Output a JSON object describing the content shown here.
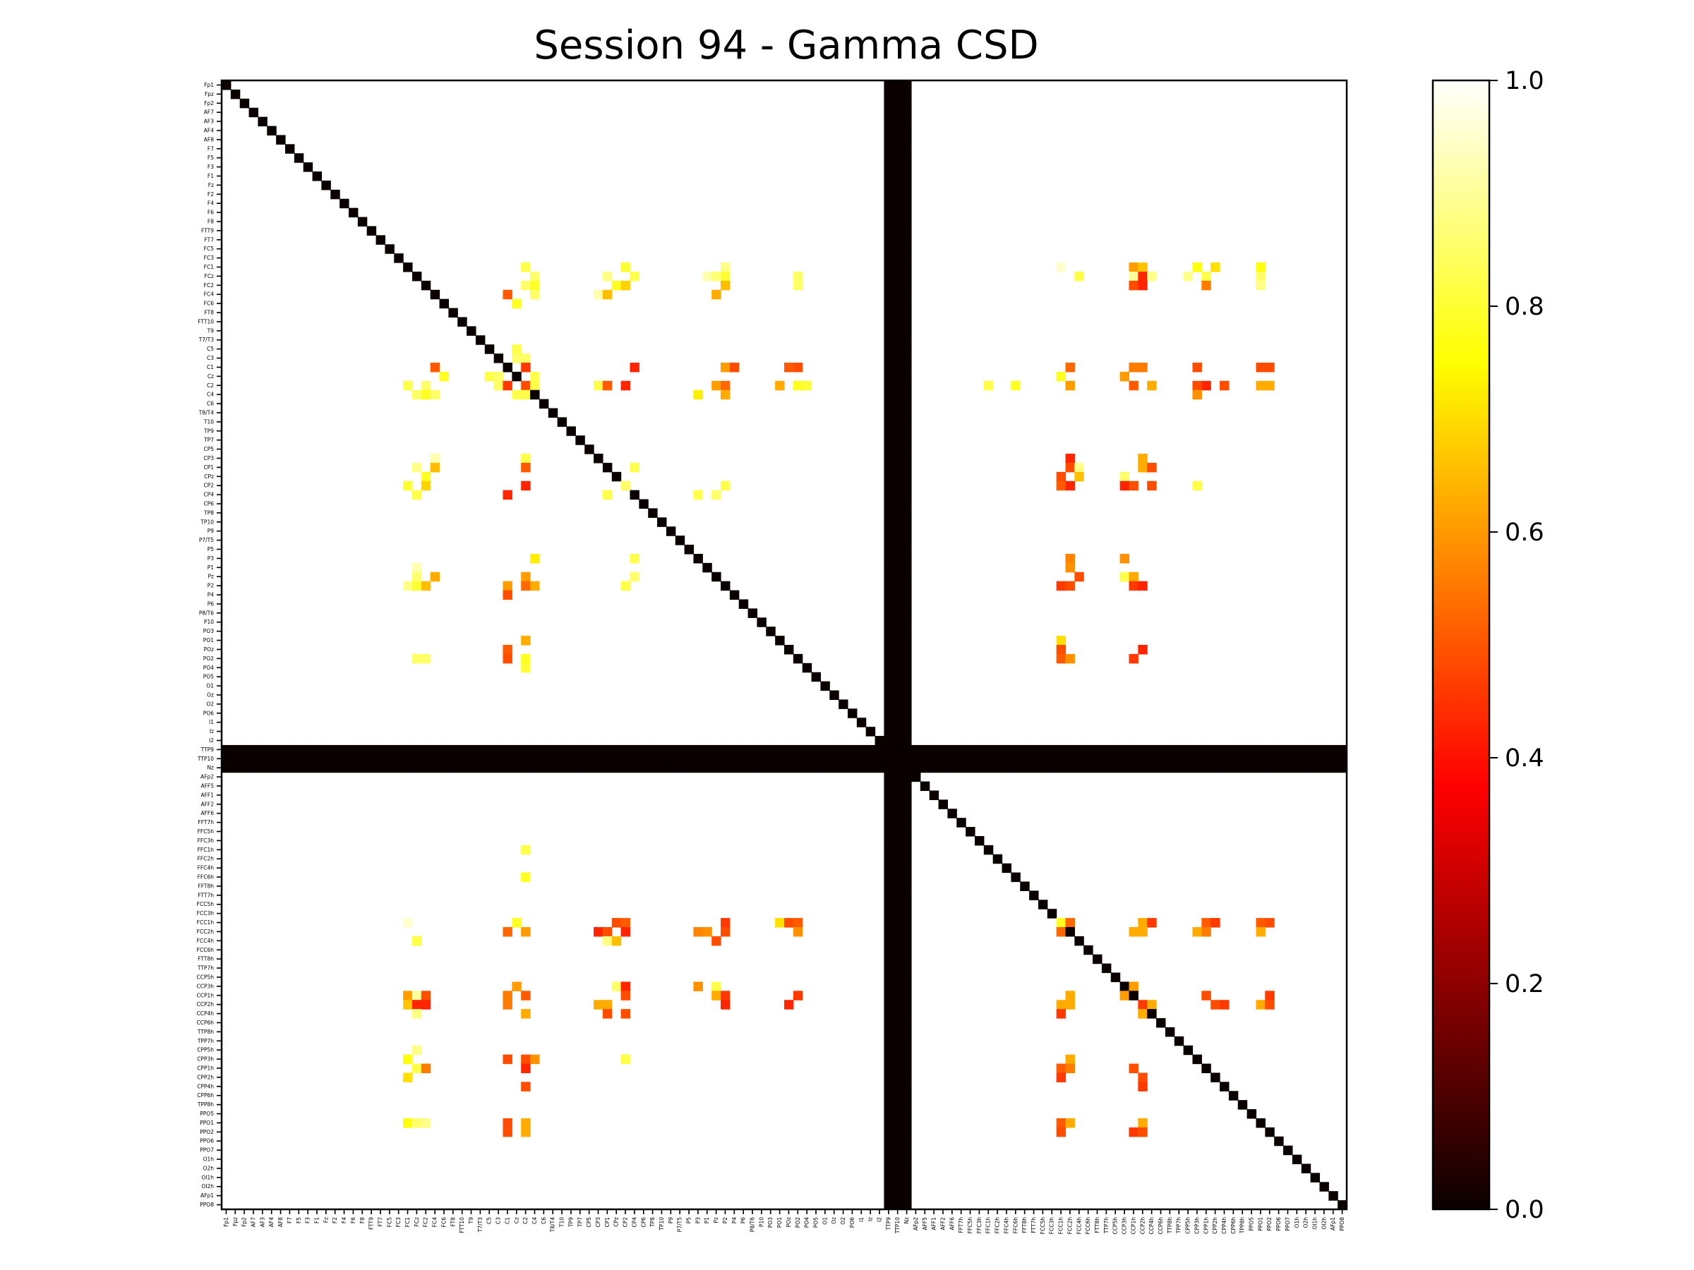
{
  "chart_data": {
    "type": "heatmap",
    "title": "Session 94 - Gamma CSD",
    "xlabel": "",
    "ylabel": "",
    "colormap": "hot",
    "vlim": [
      0.0,
      1.0
    ],
    "colorbar": {
      "ticks": [
        0.0,
        0.2,
        0.4,
        0.6,
        0.8,
        1.0
      ],
      "tick_labels": [
        "0.0",
        "0.2",
        "0.4",
        "0.6",
        "0.8",
        "1.0"
      ]
    },
    "channels": [
      "Fp1",
      "Fpz",
      "Fp2",
      "AF7",
      "AF3",
      "AF4",
      "AF8",
      "F7",
      "F5",
      "F3",
      "F1",
      "Fz",
      "F2",
      "F4",
      "F6",
      "F8",
      "FTT9",
      "FT7",
      "FC5",
      "FC3",
      "FC1",
      "FCz",
      "FC2",
      "FC4",
      "FC6",
      "FT8",
      "FTT10",
      "T9",
      "T7/T3",
      "C5",
      "C3",
      "C1",
      "Cz",
      "C2",
      "C4",
      "C6",
      "T8/T4",
      "T10",
      "TP9",
      "TP7",
      "CP5",
      "CP3",
      "CP1",
      "CPz",
      "CP2",
      "CP4",
      "CP6",
      "TP8",
      "TP10",
      "P9",
      "P7/T5",
      "P5",
      "P3",
      "P1",
      "Pz",
      "P2",
      "P4",
      "P6",
      "P8/T6",
      "P10",
      "PO3",
      "PO1",
      "POz",
      "PO2",
      "PO4",
      "PO5",
      "O1",
      "Oz",
      "O2",
      "PO6",
      "I1",
      "Iz",
      "I2",
      "TTP9",
      "TTP10",
      "Nz",
      "AFp2",
      "AFF5",
      "AFF1",
      "AFF2",
      "AFF6",
      "FFT7h",
      "FFC5h",
      "FFC3h",
      "FFC1h",
      "FFC2h",
      "FFC4h",
      "FFC6h",
      "FFT8h",
      "FTT7h",
      "FCC5h",
      "FCC3h",
      "FCC1h",
      "FCC2h",
      "FCC4h",
      "FCC6h",
      "FTT8h",
      "TTP7h",
      "CCP5h",
      "CCP3h",
      "CCP1h",
      "CCP2h",
      "CCP4h",
      "CCP6h",
      "TTP8h",
      "TPP7h",
      "CPP5h",
      "CPP3h",
      "CPP1h",
      "CPP2h",
      "CPP4h",
      "CPP6h",
      "TPP8h",
      "PPO5",
      "PPO1",
      "PPO2",
      "PPO6",
      "PPO7",
      "O1h",
      "O2h",
      "OI1h",
      "OI2h",
      "AFp1",
      "PPO8"
    ],
    "zero_rows": [
      "TTP9",
      "TTP10",
      "Nz"
    ],
    "default_value": 1.0,
    "diagonal_value": 0.0,
    "cells": [
      [
        "FC1",
        "C2",
        0.82
      ],
      [
        "FC1",
        "CP2",
        0.8
      ],
      [
        "FC1",
        "P2",
        0.88
      ],
      [
        "FC1",
        "FCC1h",
        0.95
      ],
      [
        "FC1",
        "CCP1h",
        0.6
      ],
      [
        "FC1",
        "CPP3h",
        0.76
      ],
      [
        "FC1",
        "PPO1",
        0.76
      ],
      [
        "FCz",
        "C4",
        0.85
      ],
      [
        "FCz",
        "CP1",
        0.88
      ],
      [
        "FCz",
        "CP4",
        0.82
      ],
      [
        "FCz",
        "P1",
        0.92
      ],
      [
        "FCz",
        "P2",
        0.8
      ],
      [
        "FCz",
        "Pz",
        0.86
      ],
      [
        "FCz",
        "PO2",
        0.85
      ],
      [
        "FCz",
        "FCC4h",
        0.82
      ],
      [
        "FCz",
        "CCP1h",
        0.9
      ],
      [
        "FCz",
        "CCP2h",
        0.42
      ],
      [
        "FCz",
        "CCP4h",
        0.88
      ],
      [
        "FCz",
        "CPP1h",
        0.82
      ],
      [
        "FCz",
        "CPP5h",
        0.88
      ],
      [
        "FCz",
        "PPO1",
        0.85
      ],
      [
        "FC2",
        "C2",
        0.55
      ],
      [
        "FC2",
        "C4",
        0.78
      ],
      [
        "FC2",
        "CP2",
        0.68
      ],
      [
        "FC2",
        "P2",
        0.65
      ],
      [
        "FC2",
        "PO2",
        0.85
      ],
      [
        "FC2",
        "CCP2h",
        0.42
      ],
      [
        "FC2",
        "CPP1h",
        0.55
      ],
      [
        "FC2",
        "PPO1",
        0.88
      ],
      [
        "C3",
        "C2",
        0.85
      ],
      [
        "C1",
        "FC4",
        0.5
      ],
      [
        "C1",
        "C2",
        0.45
      ],
      [
        "C1",
        "CP4",
        0.42
      ],
      [
        "C1",
        "P2",
        0.6
      ],
      [
        "C1",
        "P4",
        0.48
      ],
      [
        "C1",
        "PO2",
        0.48
      ],
      [
        "C1",
        "FCC2h",
        0.52
      ],
      [
        "C1",
        "CCP1h",
        0.55
      ],
      [
        "C1",
        "CPP3h",
        0.48
      ],
      [
        "C1",
        "PPO1",
        0.48
      ],
      [
        "Cz",
        "FC6",
        0.78
      ],
      [
        "Cz",
        "C3",
        0.85
      ],
      [
        "Cz",
        "C4",
        0.82
      ],
      [
        "Cz",
        "C5",
        0.82
      ],
      [
        "Cz",
        "FCC1h",
        0.78
      ],
      [
        "Cz",
        "CCP3h",
        0.6
      ],
      [
        "C2",
        "FC2",
        0.85
      ],
      [
        "C2",
        "C2",
        0.48
      ],
      [
        "C2",
        "CP2",
        0.42
      ],
      [
        "C2",
        "P2",
        0.6
      ],
      [
        "C2",
        "Pz",
        0.76
      ],
      [
        "C2",
        "PO1",
        0.62
      ],
      [
        "C2",
        "PO2",
        0.78
      ],
      [
        "C2",
        "PO4",
        0.8
      ],
      [
        "C2",
        "FCC2h",
        0.44
      ],
      [
        "C2",
        "CPP1h",
        0.42
      ],
      [
        "C2",
        "PPO2",
        0.62
      ],
      [
        "C4",
        "FC4",
        0.85
      ],
      [
        "C4",
        "C2",
        0.82
      ],
      [
        "C4",
        "P2",
        0.62
      ],
      [
        "CP3",
        "FC4",
        0.92
      ],
      [
        "CP3",
        "C2",
        0.82
      ],
      [
        "CP3",
        "FCC2h",
        0.42
      ],
      [
        "CP3",
        "CCP2h",
        0.62
      ],
      [
        "CP1",
        "FC4",
        0.65
      ],
      [
        "CP1",
        "C2",
        0.5
      ],
      [
        "CP1",
        "CP4",
        0.82
      ],
      [
        "CP1",
        "FCC4h",
        0.88
      ],
      [
        "CP1",
        "CCP4h",
        0.48
      ],
      [
        "CPz",
        "FC2",
        0.78
      ],
      [
        "CPz",
        "FCC1h",
        0.48
      ],
      [
        "CPz",
        "FCC4h",
        0.65
      ],
      [
        "CPz",
        "CCP3h",
        0.85
      ],
      [
        "CP2",
        "C2",
        0.42
      ],
      [
        "CP2",
        "CP2",
        0.85
      ],
      [
        "CP2",
        "P2",
        0.82
      ],
      [
        "CP2",
        "FCC2h",
        0.42
      ],
      [
        "CP2",
        "CCP3h",
        0.42
      ],
      [
        "CP2",
        "CPP3h",
        0.82
      ],
      [
        "P3",
        "C4",
        0.72
      ],
      [
        "P3",
        "CP4",
        0.82
      ],
      [
        "P3",
        "FCC2h",
        0.56
      ],
      [
        "P3",
        "CCP3h",
        0.58
      ],
      [
        "Pz",
        "FC4",
        0.62
      ],
      [
        "Pz",
        "C2",
        0.6
      ],
      [
        "Pz",
        "CP4",
        0.85
      ],
      [
        "Pz",
        "FCC4h",
        0.48
      ],
      [
        "Pz",
        "CCP1h",
        0.62
      ],
      [
        "Pz",
        "CCP3h",
        0.82
      ],
      [
        "P2",
        "C2",
        0.52
      ],
      [
        "P2",
        "FCC1h",
        0.44
      ],
      [
        "P2",
        "CCP2h",
        0.42
      ],
      [
        "PO1",
        "C2",
        0.62
      ],
      [
        "PO1",
        "FCC1h",
        0.7
      ],
      [
        "POz",
        "C1",
        0.5
      ],
      [
        "POz",
        "FCC1h",
        0.48
      ],
      [
        "POz",
        "CCP2h",
        0.42
      ],
      [
        "FFC1h",
        "C2",
        0.82
      ],
      [
        "FFC6h",
        "C2",
        0.78
      ],
      [
        "FCC1h",
        "CP2",
        0.5
      ],
      [
        "FCC1h",
        "P2",
        0.45
      ],
      [
        "FCC1h",
        "PO2",
        0.5
      ],
      [
        "FCC1h",
        "FCC1h",
        0.78
      ],
      [
        "FCC1h",
        "CCP2h",
        0.45
      ],
      [
        "FCC1h",
        "CPP1h",
        0.5
      ],
      [
        "FCC1h",
        "PPO1",
        0.5
      ],
      [
        "FCC2h",
        "C2",
        0.6
      ],
      [
        "FCC2h",
        "CP1",
        0.48
      ],
      [
        "FCC2h",
        "P1",
        0.58
      ],
      [
        "FCC2h",
        "P2",
        0.48
      ],
      [
        "FCC2h",
        "PO2",
        0.58
      ],
      [
        "FCC2h",
        "FCC1h",
        0.52
      ],
      [
        "FCC2h",
        "CCP2h",
        0.62
      ],
      [
        "FCC2h",
        "CPP1h",
        0.55
      ],
      [
        "FCC2h",
        "PPO1",
        0.52
      ],
      [
        "CCP1h",
        "FC2",
        0.48
      ],
      [
        "CCP1h",
        "C2",
        0.5
      ],
      [
        "CCP1h",
        "CP2",
        0.48
      ],
      [
        "CCP1h",
        "P2",
        0.45
      ],
      [
        "CCP1h",
        "PO2",
        0.45
      ],
      [
        "CCP1h",
        "FCC2h",
        0.62
      ],
      [
        "CCP1h",
        "CCP3h",
        0.6
      ],
      [
        "CCP1h",
        "CPP1h",
        0.48
      ],
      [
        "CCP1h",
        "PPO2",
        0.45
      ],
      [
        "CCP2h",
        "FC1",
        0.66
      ],
      [
        "CCP2h",
        "C1",
        0.55
      ],
      [
        "CCP2h",
        "CP1",
        0.62
      ],
      [
        "CCP2h",
        "FCC1h",
        0.62
      ],
      [
        "CCP2h",
        "CCP2h",
        0.45
      ],
      [
        "CCP4h",
        "C2",
        0.62
      ],
      [
        "CCP4h",
        "CP2",
        0.48
      ],
      [
        "CCP4h",
        "FCC1h",
        0.45
      ],
      [
        "CCP4h",
        "CCP2h",
        0.62
      ],
      [
        "CPP3h",
        "C2",
        0.48
      ],
      [
        "CPP3h",
        "C4",
        0.58
      ],
      [
        "CPP3h",
        "FCC2h",
        0.62
      ],
      [
        "CPP2h",
        "FC1",
        0.7
      ],
      [
        "CPP2h",
        "FCC1h",
        0.45
      ],
      [
        "CPP2h",
        "CCP2h",
        0.48
      ],
      [
        "CPP4h",
        "C2",
        0.48
      ],
      [
        "CPP4h",
        "CCP2h",
        0.45
      ],
      [
        "PPO1",
        "C2",
        0.62
      ],
      [
        "PPO1",
        "FCC2h",
        0.62
      ],
      [
        "PPO1",
        "CCP2h",
        0.62
      ],
      [
        "PPO2",
        "C1",
        0.48
      ],
      [
        "PPO2",
        "FCC1h",
        0.48
      ],
      [
        "PPO2",
        "CCP2h",
        0.48
      ]
    ]
  }
}
